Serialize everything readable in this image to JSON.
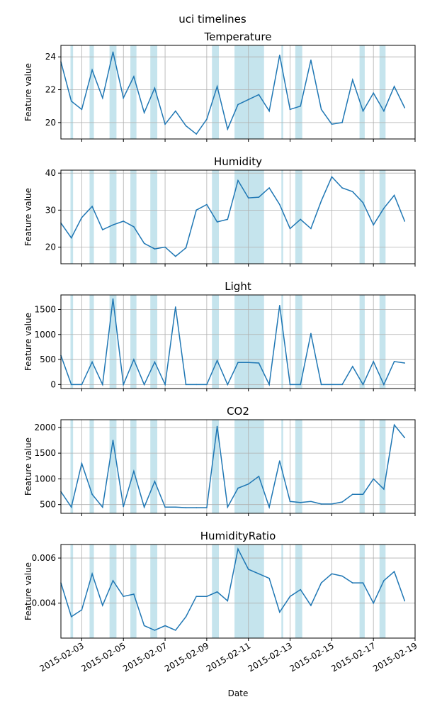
{
  "figure_title": "uci timelines",
  "colors": {
    "line": "#1f77b4",
    "shade": "#add8e6",
    "grid": "#b0b0b0",
    "axis": "#000000"
  },
  "chart_data": [
    {
      "type": "line",
      "title": "Temperature",
      "ylabel": "Feature value",
      "xlabel": "",
      "ylim": [
        19.0,
        24.7
      ],
      "yticks": [
        20,
        22,
        24
      ],
      "ytick_labels": [
        "20",
        "22",
        "24"
      ],
      "grid": true,
      "series": [
        {
          "x": [
            "2015-02-02",
            "2015-02-02 12:00",
            "2015-02-03",
            "2015-02-03 12:00",
            "2015-02-04",
            "2015-02-04 12:00",
            "2015-02-05",
            "2015-02-05 12:00",
            "2015-02-06",
            "2015-02-06 12:00",
            "2015-02-07",
            "2015-02-07 12:00",
            "2015-02-08",
            "2015-02-08 12:00",
            "2015-02-09",
            "2015-02-09 12:00",
            "2015-02-10",
            "2015-02-10 12:00",
            "2015-02-11",
            "2015-02-11 12:00",
            "2015-02-12",
            "2015-02-12 12:00",
            "2015-02-13",
            "2015-02-13 12:00",
            "2015-02-14",
            "2015-02-14 12:00",
            "2015-02-15",
            "2015-02-15 12:00",
            "2015-02-16",
            "2015-02-16 12:00",
            "2015-02-17",
            "2015-02-17 12:00",
            "2015-02-18",
            "2015-02-18 12:00"
          ],
          "y": [
            23.7,
            21.3,
            20.8,
            23.2,
            21.5,
            24.3,
            21.5,
            22.8,
            20.6,
            22.1,
            19.9,
            20.7,
            19.8,
            19.3,
            20.2,
            22.2,
            19.6,
            21.1,
            21.4,
            21.7,
            20.7,
            24.1,
            20.8,
            21.0,
            23.8,
            20.8,
            19.9,
            20.0,
            22.6,
            20.7,
            21.8,
            20.7,
            22.2,
            20.9
          ]
        }
      ]
    },
    {
      "type": "line",
      "title": "Humidity",
      "ylabel": "Feature value",
      "xlabel": "",
      "ylim": [
        15.5,
        40.8
      ],
      "yticks": [
        20,
        30,
        40
      ],
      "ytick_labels": [
        "20",
        "30",
        "40"
      ],
      "grid": true,
      "series": [
        {
          "x": [
            "2015-02-02",
            "2015-02-02 12:00",
            "2015-02-03",
            "2015-02-03 12:00",
            "2015-02-04",
            "2015-02-04 12:00",
            "2015-02-05",
            "2015-02-05 12:00",
            "2015-02-06",
            "2015-02-06 12:00",
            "2015-02-07",
            "2015-02-07 12:00",
            "2015-02-08",
            "2015-02-08 12:00",
            "2015-02-09",
            "2015-02-09 12:00",
            "2015-02-10",
            "2015-02-10 12:00",
            "2015-02-11",
            "2015-02-11 12:00",
            "2015-02-12",
            "2015-02-12 12:00",
            "2015-02-13",
            "2015-02-13 12:00",
            "2015-02-14",
            "2015-02-14 12:00",
            "2015-02-15",
            "2015-02-15 12:00",
            "2015-02-16",
            "2015-02-16 12:00",
            "2015-02-17",
            "2015-02-17 12:00",
            "2015-02-18",
            "2015-02-18 12:00"
          ],
          "y": [
            26.5,
            22.5,
            28.0,
            31.0,
            24.7,
            26.0,
            27.0,
            25.5,
            21.0,
            19.5,
            20.0,
            17.5,
            19.8,
            30.0,
            31.5,
            26.8,
            27.5,
            38.0,
            33.3,
            33.5,
            36.0,
            31.5,
            25.0,
            27.5,
            25.0,
            32.5,
            39.0,
            36.0,
            35.0,
            32.0,
            26.0,
            30.5,
            34.0,
            27.0
          ]
        }
      ]
    },
    {
      "type": "line",
      "title": "Light",
      "ylabel": "Feature value",
      "xlabel": "",
      "ylim": [
        -80,
        1790
      ],
      "yticks": [
        0,
        500,
        1000,
        1500
      ],
      "ytick_labels": [
        "0",
        "500",
        "1000",
        "1500"
      ],
      "grid": true,
      "series": [
        {
          "x": [
            "2015-02-02",
            "2015-02-02 12:00",
            "2015-02-03",
            "2015-02-03 12:00",
            "2015-02-04",
            "2015-02-04 12:00",
            "2015-02-05",
            "2015-02-05 12:00",
            "2015-02-06",
            "2015-02-06 12:00",
            "2015-02-07",
            "2015-02-07 12:00",
            "2015-02-08",
            "2015-02-08 12:00",
            "2015-02-09",
            "2015-02-09 12:00",
            "2015-02-10",
            "2015-02-10 12:00",
            "2015-02-11",
            "2015-02-11 12:00",
            "2015-02-12",
            "2015-02-12 12:00",
            "2015-02-13",
            "2015-02-13 12:00",
            "2015-02-14",
            "2015-02-14 12:00",
            "2015-02-15",
            "2015-02-15 12:00",
            "2015-02-16",
            "2015-02-16 12:00",
            "2015-02-17",
            "2015-02-17 12:00",
            "2015-02-18",
            "2015-02-18 12:00"
          ],
          "y": [
            580,
            0,
            0,
            450,
            0,
            1710,
            0,
            500,
            0,
            450,
            0,
            1550,
            0,
            0,
            0,
            480,
            0,
            440,
            440,
            430,
            0,
            1580,
            0,
            0,
            1020,
            0,
            0,
            0,
            360,
            0,
            460,
            0,
            460,
            430
          ]
        }
      ]
    },
    {
      "type": "line",
      "title": "CO2",
      "ylabel": "Feature value",
      "xlabel": "",
      "ylim": [
        330,
        2150
      ],
      "yticks": [
        500,
        1000,
        1500,
        2000
      ],
      "ytick_labels": [
        "500",
        "1000",
        "1500",
        "2000"
      ],
      "grid": true,
      "series": [
        {
          "x": [
            "2015-02-02",
            "2015-02-02 12:00",
            "2015-02-03",
            "2015-02-03 12:00",
            "2015-02-04",
            "2015-02-04 12:00",
            "2015-02-05",
            "2015-02-05 12:00",
            "2015-02-06",
            "2015-02-06 12:00",
            "2015-02-07",
            "2015-02-07 12:00",
            "2015-02-08",
            "2015-02-08 12:00",
            "2015-02-09",
            "2015-02-09 12:00",
            "2015-02-10",
            "2015-02-10 12:00",
            "2015-02-11",
            "2015-02-11 12:00",
            "2015-02-12",
            "2015-02-12 12:00",
            "2015-02-13",
            "2015-02-13 12:00",
            "2015-02-14",
            "2015-02-14 12:00",
            "2015-02-15",
            "2015-02-15 12:00",
            "2015-02-16",
            "2015-02-16 12:00",
            "2015-02-17",
            "2015-02-17 12:00",
            "2015-02-18",
            "2015-02-18 12:00"
          ],
          "y": [
            750,
            450,
            1300,
            700,
            450,
            1750,
            460,
            1150,
            450,
            950,
            450,
            450,
            440,
            440,
            440,
            2020,
            450,
            820,
            900,
            1050,
            450,
            1350,
            560,
            540,
            560,
            510,
            510,
            550,
            700,
            700,
            1000,
            800,
            2050,
            1800
          ]
        }
      ]
    },
    {
      "type": "line",
      "title": "HumidityRatio",
      "ylabel": "Feature value",
      "xlabel": "Date",
      "ylim": [
        0.00245,
        0.0066
      ],
      "yticks": [
        0.004,
        0.006
      ],
      "ytick_labels": [
        "0.004",
        "0.006"
      ],
      "grid": true,
      "xticks": [
        "2015-02-03",
        "2015-02-05",
        "2015-02-07",
        "2015-02-09",
        "2015-02-11",
        "2015-02-13",
        "2015-02-15",
        "2015-02-17",
        "2015-02-19"
      ],
      "xtick_labels": [
        "2015-02-03",
        "2015-02-05",
        "2015-02-07",
        "2015-02-09",
        "2015-02-11",
        "2015-02-13",
        "2015-02-15",
        "2015-02-17",
        "2015-02-19"
      ],
      "series": [
        {
          "x": [
            "2015-02-02",
            "2015-02-02 12:00",
            "2015-02-03",
            "2015-02-03 12:00",
            "2015-02-04",
            "2015-02-04 12:00",
            "2015-02-05",
            "2015-02-05 12:00",
            "2015-02-06",
            "2015-02-06 12:00",
            "2015-02-07",
            "2015-02-07 12:00",
            "2015-02-08",
            "2015-02-08 12:00",
            "2015-02-09",
            "2015-02-09 12:00",
            "2015-02-10",
            "2015-02-10 12:00",
            "2015-02-11",
            "2015-02-11 12:00",
            "2015-02-12",
            "2015-02-12 12:00",
            "2015-02-13",
            "2015-02-13 12:00",
            "2015-02-14",
            "2015-02-14 12:00",
            "2015-02-15",
            "2015-02-15 12:00",
            "2015-02-16",
            "2015-02-16 12:00",
            "2015-02-17",
            "2015-02-17 12:00",
            "2015-02-18",
            "2015-02-18 12:00"
          ],
          "y": [
            0.0049,
            0.0034,
            0.0037,
            0.0053,
            0.0039,
            0.005,
            0.0043,
            0.0044,
            0.003,
            0.0028,
            0.003,
            0.0028,
            0.0034,
            0.0043,
            0.0043,
            0.0045,
            0.0041,
            0.0064,
            0.0055,
            0.0053,
            0.0051,
            0.0036,
            0.0043,
            0.0046,
            0.0039,
            0.0049,
            0.0053,
            0.0052,
            0.0049,
            0.0049,
            0.004,
            0.005,
            0.0054,
            0.0041
          ]
        }
      ]
    }
  ],
  "x_axis": {
    "start": "2015-02-02",
    "end": "2015-02-19",
    "shaded_periods": [
      [
        "2015-02-02 11:00",
        "2015-02-02 14:00"
      ],
      [
        "2015-02-03 09:00",
        "2015-02-03 14:00"
      ],
      [
        "2015-02-04 08:00",
        "2015-02-04 16:00"
      ],
      [
        "2015-02-05 08:00",
        "2015-02-05 15:00"
      ],
      [
        "2015-02-06 07:00",
        "2015-02-06 15:00"
      ],
      [
        "2015-02-09 06:00",
        "2015-02-09 14:00"
      ],
      [
        "2015-02-10 08:00",
        "2015-02-11 18:00"
      ],
      [
        "2015-02-12 14:00",
        "2015-02-12 16:00"
      ],
      [
        "2015-02-13 06:00",
        "2015-02-13 14:00"
      ],
      [
        "2015-02-16 08:00",
        "2015-02-16 14:00"
      ],
      [
        "2015-02-17 07:00",
        "2015-02-17 14:00"
      ]
    ]
  }
}
